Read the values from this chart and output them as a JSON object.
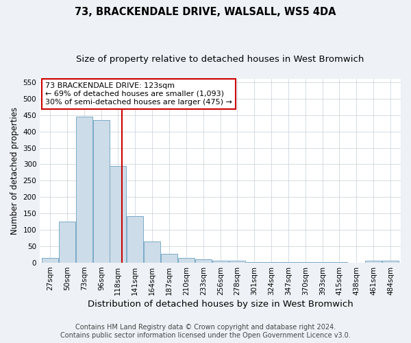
{
  "title": "73, BRACKENDALE DRIVE, WALSALL, WS5 4DA",
  "subtitle": "Size of property relative to detached houses in West Bromwich",
  "xlabel": "Distribution of detached houses by size in West Bromwich",
  "ylabel": "Number of detached properties",
  "bin_centers": [
    27,
    50,
    73,
    96,
    118,
    141,
    164,
    187,
    210,
    233,
    256,
    278,
    301,
    324,
    347,
    370,
    393,
    415,
    438,
    461,
    484
  ],
  "bar_heights": [
    15,
    125,
    445,
    435,
    295,
    143,
    65,
    28,
    15,
    10,
    7,
    6,
    3,
    2,
    2,
    2,
    2,
    3,
    0,
    6,
    6
  ],
  "bar_color": "#ccdce8",
  "bar_edgecolor": "#7baac8",
  "property_size": 123,
  "vline_color": "#cc0000",
  "ylim": [
    0,
    560
  ],
  "yticks": [
    0,
    50,
    100,
    150,
    200,
    250,
    300,
    350,
    400,
    450,
    500,
    550
  ],
  "annotation_line1": "73 BRACKENDALE DRIVE: 123sqm",
  "annotation_line2": "← 69% of detached houses are smaller (1,093)",
  "annotation_line3": "30% of semi-detached houses are larger (475) →",
  "annotation_box_edgecolor": "#cc0000",
  "annotation_box_facecolor": "#ffffff",
  "footer_line1": "Contains HM Land Registry data © Crown copyright and database right 2024.",
  "footer_line2": "Contains public sector information licensed under the Open Government Licence v3.0.",
  "title_fontsize": 10.5,
  "subtitle_fontsize": 9.5,
  "xlabel_fontsize": 9.5,
  "ylabel_fontsize": 8.5,
  "tick_fontsize": 7.5,
  "annotation_fontsize": 8,
  "footer_fontsize": 7,
  "background_color": "#eef2f7",
  "plot_background_color": "#ffffff",
  "grid_color": "#c5cfd8"
}
